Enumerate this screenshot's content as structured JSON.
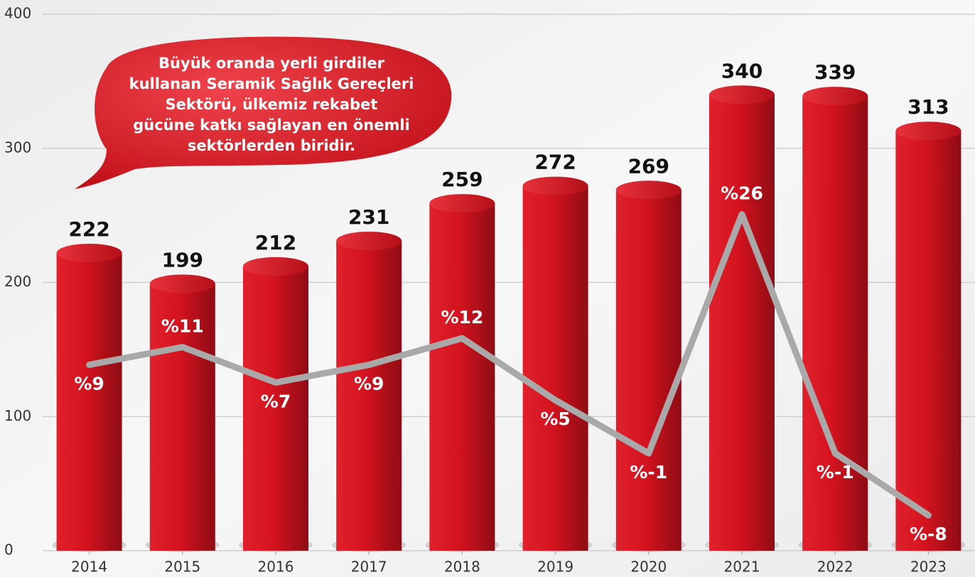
{
  "chart_data": {
    "type": "bar",
    "categories": [
      "2014",
      "2015",
      "2016",
      "2017",
      "2018",
      "2019",
      "2020",
      "2021",
      "2022",
      "2023"
    ],
    "series": [
      {
        "type": "bar",
        "color": "#d4131f",
        "values": [
          222,
          199,
          212,
          231,
          259,
          272,
          269,
          340,
          339,
          313
        ]
      },
      {
        "type": "line",
        "axis": "y2",
        "color": "#a9a9a9",
        "values": [
          9,
          11,
          7,
          9,
          12,
          5,
          -1,
          26,
          -1,
          -8
        ],
        "value_labels": [
          "%9",
          "%11",
          "%7",
          "%9",
          "%12",
          "%5",
          "%-1",
          "%26",
          "%-1",
          "%-8"
        ]
      }
    ],
    "ylim": [
      0,
      400
    ],
    "yticks": [
      0,
      100,
      200,
      300,
      400
    ],
    "y2lim": [
      -12,
      48.6
    ],
    "grid": true,
    "annotation": [
      "Büyük oranda yerli girdiler",
      "kullanan Seramik Sağlık Gereçleri",
      "Sektörü, ülkemiz rekabet",
      "gücüne katkı sağlayan en önemli",
      "sektörlerden biridir."
    ]
  }
}
